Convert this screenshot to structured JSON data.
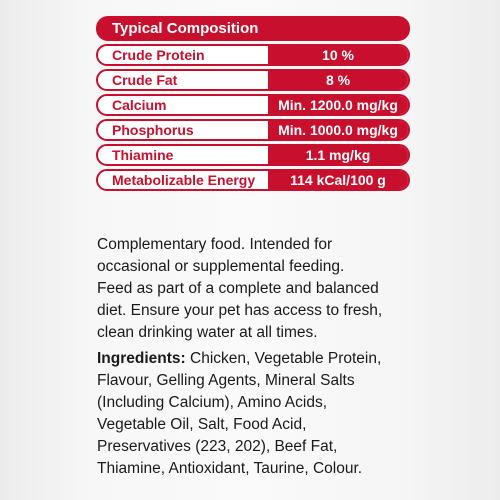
{
  "composition": {
    "title": "Typical Composition",
    "rows": [
      {
        "name": "Crude Protein",
        "value": "10 %"
      },
      {
        "name": "Crude Fat",
        "value": "8 %"
      },
      {
        "name": "Calcium",
        "value": "Min. 1200.0 mg/kg"
      },
      {
        "name": "Phosphorus",
        "value": "Min. 1000.0 mg/kg"
      },
      {
        "name": "Thiamine",
        "value": "1.1 mg/kg"
      },
      {
        "name": "Metabolizable Energy",
        "value": "114 kCal/100 g"
      }
    ]
  },
  "intro": {
    "lines": [
      "Complementary food. Intended for",
      "occasional or supplemental feeding.",
      "Feed as part of a complete and balanced",
      "diet. Ensure your pet has access to fresh,",
      "clean drinking water at all times."
    ]
  },
  "ingredients": {
    "label": "Ingredients:",
    "first_line_rest": " Chicken, Vegetable Protein,",
    "lines": [
      "Flavour, Gelling Agents, Mineral Salts",
      "(Including Calcium), Amino Acids,",
      "Vegetable Oil, Salt, Food Acid,",
      "Preservatives (223, 202), Beef Fat,",
      "Thiamine, Antioxidant, Taurine, Colour."
    ]
  },
  "colors": {
    "accent": "#c8102e",
    "text": "#1a1a1a",
    "background": "#f7f7f7"
  }
}
